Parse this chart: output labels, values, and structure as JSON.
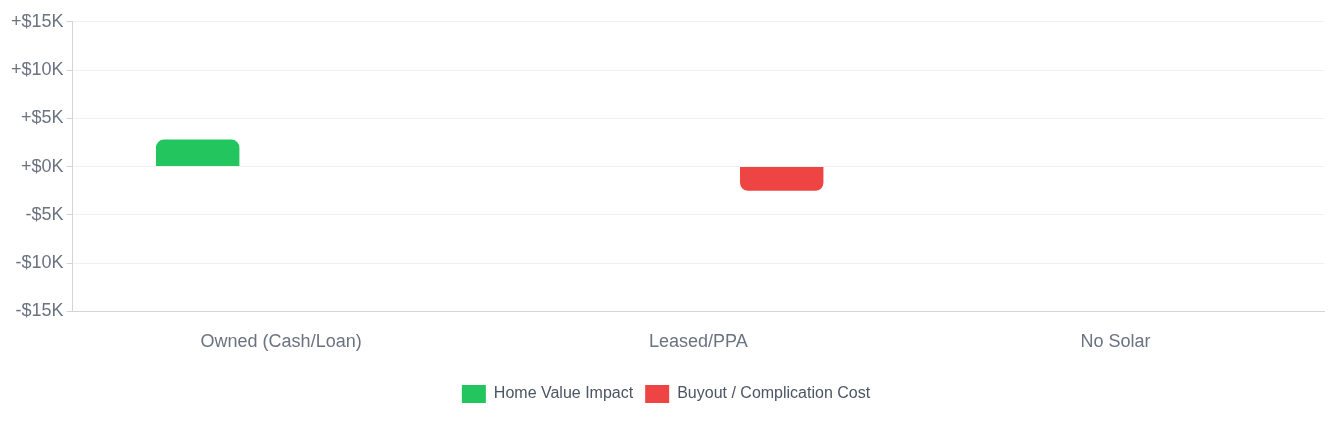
{
  "chart_data": {
    "type": "bar",
    "categories": [
      "Owned (Cash/Loan)",
      "Leased/PPA",
      "No Solar"
    ],
    "series": [
      {
        "name": "Home Value Impact",
        "color": "#22c55e",
        "values": [
          2800,
          null,
          null
        ]
      },
      {
        "name": "Buyout / Complication Cost",
        "color": "#ef4444",
        "values": [
          null,
          -2500,
          null
        ]
      }
    ],
    "ylim": [
      -15000,
      15000
    ],
    "yticks": [
      {
        "value": -15000,
        "label": "-$15K"
      },
      {
        "value": -10000,
        "label": "-$10K"
      },
      {
        "value": -5000,
        "label": "-$5K"
      },
      {
        "value": 0,
        "label": "+$0K"
      },
      {
        "value": 5000,
        "label": "+$5K"
      },
      {
        "value": 10000,
        "label": "+$10K"
      },
      {
        "value": 15000,
        "label": "+$15K"
      }
    ],
    "grid": "y",
    "legend": "bottom"
  }
}
